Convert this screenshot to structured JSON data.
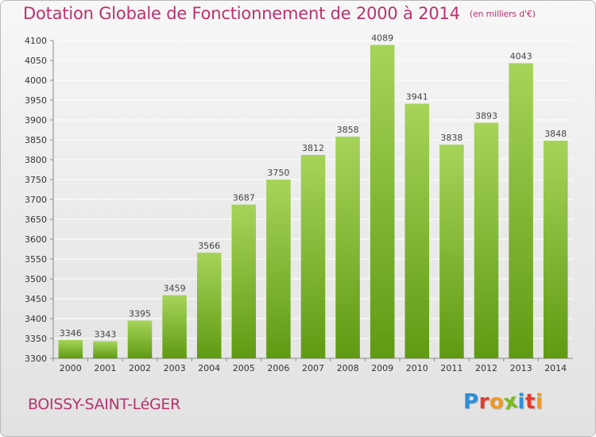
{
  "header": {
    "title": "Dotation Globale de Fonctionnement de 2000 à 2014",
    "unit": "(en milliers d'€)"
  },
  "footer": {
    "city": "BOISSY-SAINT-LéGER",
    "logo_text": "Proxiti",
    "logo_letters": [
      {
        "ch": "P",
        "color": "#2a8fd6"
      },
      {
        "ch": "r",
        "color": "#e23b2e"
      },
      {
        "ch": "o",
        "color": "#f19a1d"
      },
      {
        "ch": "x",
        "color": "#7ab81e"
      },
      {
        "ch": "i",
        "color": "#2a8fd6"
      },
      {
        "ch": "t",
        "color": "#e23b2e"
      },
      {
        "ch": "i",
        "color": "#f19a1d"
      }
    ]
  },
  "colors": {
    "bar_top": "#a6d45a",
    "bar_bottom": "#5f9a12",
    "title": "#b8326e",
    "grid": "#ffffff"
  },
  "chart_data": {
    "type": "bar",
    "title": "Dotation Globale de Fonctionnement de 2000 à 2014",
    "subtitle": "(en milliers d'€)",
    "xlabel": "",
    "ylabel": "",
    "categories": [
      "2000",
      "2001",
      "2002",
      "2003",
      "2004",
      "2005",
      "2006",
      "2007",
      "2008",
      "2009",
      "2010",
      "2011",
      "2012",
      "2013",
      "2014"
    ],
    "values": [
      3346,
      3343,
      3395,
      3459,
      3566,
      3687,
      3750,
      3812,
      3858,
      4089,
      3941,
      3838,
      3893,
      4043,
      3848
    ],
    "ylim": [
      3300,
      4100
    ],
    "yticks": [
      3300,
      3350,
      3400,
      3450,
      3500,
      3550,
      3600,
      3650,
      3700,
      3750,
      3800,
      3850,
      3900,
      3950,
      4000,
      4050,
      4100
    ],
    "grid": true,
    "data_labels": true
  }
}
